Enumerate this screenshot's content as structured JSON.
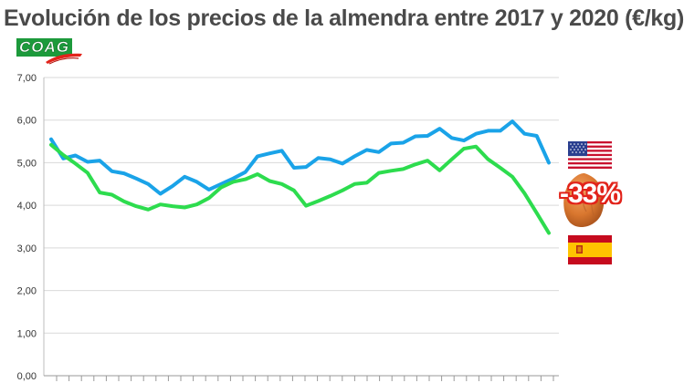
{
  "title": "Evolución de los precios de la almendra entre 2017 y 2020 (€/kg)",
  "logo_text": "COAG",
  "badge": "-33%",
  "icons": [
    "usa-flag-icon",
    "spain-flag-icon",
    "almond-icon"
  ],
  "colors": {
    "usa_line": "#1aa3e8",
    "spain_line": "#2ddc4e",
    "grid": "#d9d9d9",
    "badge": "#e2231a"
  },
  "chart_data": {
    "type": "line",
    "title": "Evolución de los precios de la almendra entre 2017 y 2020 (€/kg)",
    "xlabel": "",
    "ylabel": "",
    "ylim": [
      0,
      7
    ],
    "yticks": [
      "0,00",
      "1,00",
      "2,00",
      "3,00",
      "4,00",
      "5,00",
      "6,00",
      "7,00"
    ],
    "grid": true,
    "x": [
      1,
      2,
      3,
      4,
      5,
      6,
      7,
      8,
      9,
      10,
      11,
      12,
      13,
      14,
      15,
      16,
      17,
      18,
      19,
      20,
      21,
      22,
      23,
      24,
      25,
      26,
      27,
      28,
      29,
      30,
      31,
      32,
      33,
      34,
      35,
      36,
      37,
      38,
      39,
      40,
      41,
      42
    ],
    "series": [
      {
        "id": "usa",
        "color": "#1aa3e8",
        "values": [
          5.55,
          5.1,
          5.17,
          5.02,
          5.05,
          4.8,
          4.75,
          4.63,
          4.5,
          4.27,
          4.45,
          4.67,
          4.55,
          4.37,
          4.5,
          4.63,
          4.78,
          5.15,
          5.22,
          5.28,
          4.88,
          4.9,
          5.11,
          5.08,
          4.98,
          5.15,
          5.3,
          5.25,
          5.45,
          5.47,
          5.62,
          5.63,
          5.8,
          5.58,
          5.52,
          5.68,
          5.75,
          5.75,
          5.97,
          5.68,
          5.63,
          5.0
        ]
      },
      {
        "id": "spain",
        "color": "#2ddc4e",
        "values": [
          5.42,
          5.18,
          4.98,
          4.76,
          4.3,
          4.25,
          4.09,
          3.98,
          3.9,
          4.02,
          3.98,
          3.95,
          4.02,
          4.17,
          4.42,
          4.55,
          4.61,
          4.73,
          4.57,
          4.5,
          4.35,
          3.99,
          4.1,
          4.22,
          4.35,
          4.5,
          4.53,
          4.76,
          4.81,
          4.85,
          4.96,
          5.05,
          4.82,
          5.08,
          5.33,
          5.38,
          5.08,
          4.88,
          4.67,
          4.28,
          3.82,
          3.35
        ]
      }
    ]
  }
}
